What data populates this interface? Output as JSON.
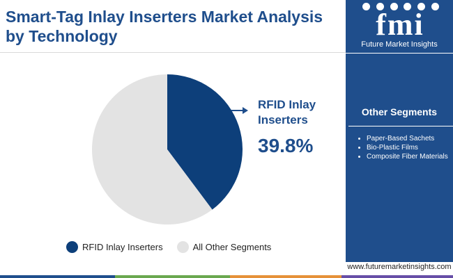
{
  "header": {
    "title": "Smart-Tag Inlay Inserters Market Analysis by Technology"
  },
  "logo": {
    "mark": "fmi",
    "subtitle": "Future Market Insights"
  },
  "sidebar": {
    "title": "Other Segments",
    "items": [
      "Paper-Based Sachets",
      "Bio-Plastic Films",
      "Composite Fiber Materials"
    ]
  },
  "footer": {
    "website": "www.futuremarketinsights.com"
  },
  "callout": {
    "label": "RFID Inlay Inserters",
    "value": "39.8%"
  },
  "colors": {
    "primary": "#1f4e8c",
    "rfid": "#0d3f7a",
    "other": "#e3e3e3",
    "bar": [
      "#1f4e8c",
      "#6aa84f",
      "#e69138",
      "#674ea7"
    ]
  },
  "chart_data": {
    "type": "pie",
    "title": "Smart-Tag Inlay Inserters Market Analysis by Technology",
    "slices": [
      {
        "label": "RFID Inlay Inserters",
        "value": 39.8
      },
      {
        "label": "All Other Segments",
        "value": 60.2
      }
    ],
    "legend_position": "bottom"
  }
}
